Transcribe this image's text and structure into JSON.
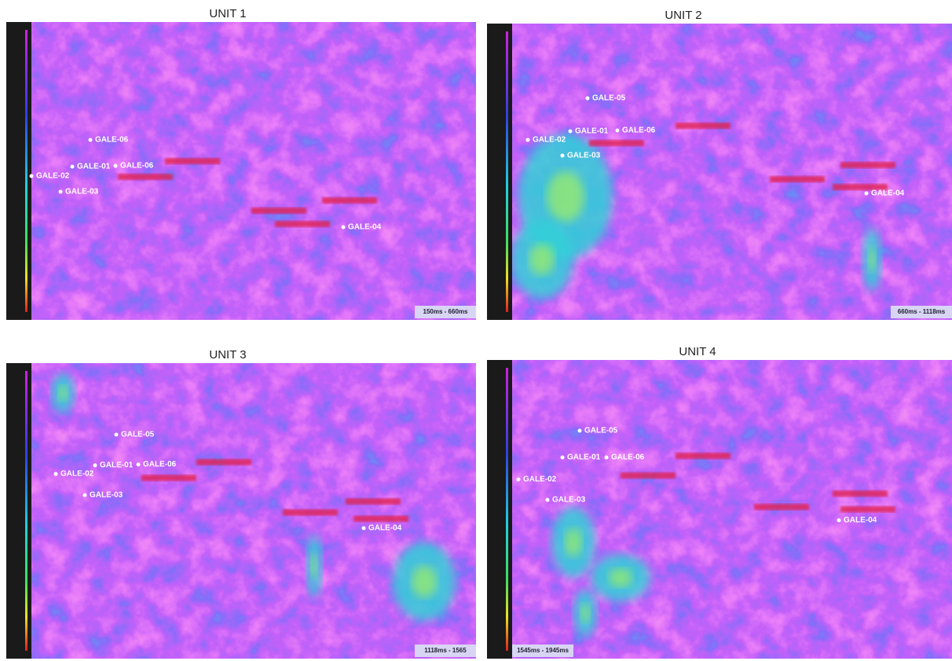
{
  "panels": [
    {
      "title": "UNIT 1",
      "range": "150ms - 660ms",
      "wells": [
        "GALE-06",
        "GALE-01",
        "GALE-06",
        "GALE-02",
        "GALE-03",
        "GALE-04"
      ]
    },
    {
      "title": "UNIT 2",
      "range": "660ms - 1118ms",
      "wells": [
        "GALE-05",
        "GALE-01",
        "GALE-06",
        "GALE-02",
        "GALE-03",
        "GALE-04"
      ]
    },
    {
      "title": "UNIT 3",
      "range": "1118ms - 1565",
      "wells": [
        "GALE-05",
        "GALE-02",
        "GALE-01",
        "GALE-06",
        "GALE-03",
        "GALE-04"
      ]
    },
    {
      "title": "UNIT 4",
      "range": "1545ms - 1945ms",
      "wells": [
        "GALE-05",
        "GALE-01",
        "GALE-06",
        "GALE-02",
        "GALE-03",
        "GALE-04"
      ]
    }
  ]
}
